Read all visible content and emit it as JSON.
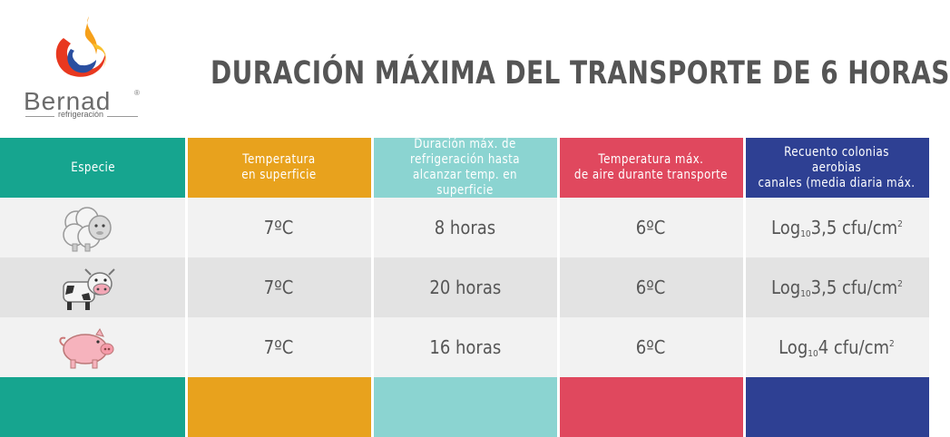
{
  "logo": {
    "brand": "Bernad",
    "reg_mark": "®",
    "sub": "refrigeración"
  },
  "title": "DURACIÓN MÁXIMA DEL TRANSPORTE DE 6 HORAS",
  "colors": {
    "teal": "#16a58f",
    "orange": "#e8a21d",
    "light_teal": "#8bd4d1",
    "red": "#e0485e",
    "navy": "#2e4093",
    "row_light": "#f2f2f2",
    "row_dark": "#e3e3e3"
  },
  "headers": [
    "Especie",
    "Temperatura\nen superficie",
    "Duración máx. de\nrefrigeración hasta\nalcanzar temp. en superficie",
    "Temperatura máx.\nde aire durante transporte",
    "Recuento colonias aerobias\ncanales (media diaria máx."
  ],
  "rows": [
    {
      "animal": "sheep-icon",
      "temp": "7ºC",
      "duration": "8 horas",
      "air_temp": "6ºC",
      "count_pre": "Log",
      "count_sub": "10",
      "count_main": "3,5 cfu/cm",
      "count_sup": "2"
    },
    {
      "animal": "cow-icon",
      "temp": "7ºC",
      "duration": "20 horas",
      "air_temp": "6ºC",
      "count_pre": "Log",
      "count_sub": "10",
      "count_main": "3,5 cfu/cm",
      "count_sup": "2"
    },
    {
      "animal": "pig-icon",
      "temp": "7ºC",
      "duration": "16 horas",
      "air_temp": "6ºC",
      "count_pre": "Log",
      "count_sub": "10",
      "count_main": "4 cfu/cm",
      "count_sup": "2"
    }
  ]
}
